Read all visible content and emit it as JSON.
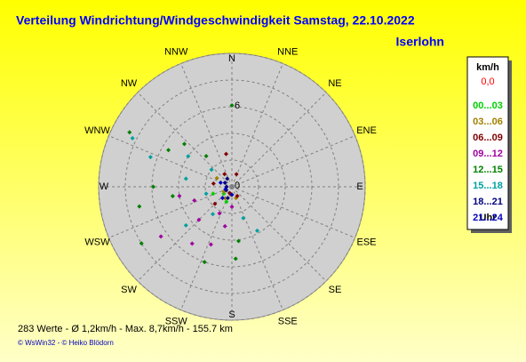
{
  "chart_data": {
    "type": "polar-scatter",
    "title": "Verteilung Windrichtung/Windgeschwindigkeit  Samstag, 22.10.2022",
    "subtitle": "Iserlohn",
    "directions": [
      "N",
      "NNE",
      "NE",
      "ENE",
      "E",
      "ESE",
      "SE",
      "SSE",
      "S",
      "SSW",
      "SW",
      "WSW",
      "W",
      "WNW",
      "NW",
      "NNW"
    ],
    "rlim": [
      0,
      10
    ],
    "rgrid": [
      2,
      4,
      6,
      8,
      10
    ],
    "rticks": [
      0,
      6
    ],
    "legend_unit": "km/h",
    "legend_calm": "0,0",
    "legend_footer": "Uhr",
    "series": [
      {
        "name": "00...03",
        "color": "#00d000",
        "direction": [
          200,
          230,
          250
        ],
        "speed": [
          1.2,
          0.8,
          1.5
        ]
      },
      {
        "name": "03...06",
        "color": "#a08000",
        "direction": [
          190,
          210,
          300,
          240,
          160
        ],
        "speed": [
          0.6,
          1.0,
          1.3,
          0.7,
          0.9
        ]
      },
      {
        "name": "06...09",
        "color": "#800000",
        "direction": [
          330,
          20,
          200,
          280,
          150,
          350,
          225
        ],
        "speed": [
          1.1,
          1.0,
          0.5,
          1.4,
          0.8,
          2.5,
          1.8
        ]
      },
      {
        "name": "09...12",
        "color": "#a000a0",
        "direction": [
          200,
          215,
          225,
          235,
          250,
          190,
          205,
          180,
          260
        ],
        "speed": [
          4.6,
          5.2,
          3.5,
          6.5,
          3.0,
          3.0,
          2.2,
          1.5,
          4.0
        ]
      },
      {
        "name": "12...15",
        "color": "#008000",
        "direction": [
          0,
          298,
          312,
          258,
          270,
          238,
          177,
          173,
          261,
          200,
          320,
          300
        ],
        "speed": [
          6.1,
          8.7,
          4.8,
          7.1,
          5.9,
          8.0,
          5.4,
          4.1,
          4.5,
          6.0,
          3.0,
          5.5
        ]
      },
      {
        "name": "15...18",
        "color": "#00a0a0",
        "direction": [
          296,
          290,
          305,
          280,
          230,
          215,
          160,
          255,
          310,
          150
        ],
        "speed": [
          8.3,
          6.5,
          4.0,
          3.5,
          4.5,
          2.5,
          2.5,
          2.0,
          2.0,
          3.8
        ]
      },
      {
        "name": "18...21",
        "color": "#000080",
        "direction": [
          270,
          300,
          240,
          200,
          330
        ],
        "speed": [
          0.4,
          0.6,
          0.5,
          0.9,
          0.7
        ]
      },
      {
        "name": "21...24",
        "color": "#0000c0",
        "direction": [
          250,
          220,
          290,
          180
        ],
        "speed": [
          0.5,
          1.1,
          0.9,
          0.6
        ]
      }
    ],
    "footer": "283 Werte   -   Ø 1,2km/h   -   Max. 8,7km/h   -   155.7 km",
    "copyright": "© WsWin32  -  © Heiko Blödorn"
  }
}
